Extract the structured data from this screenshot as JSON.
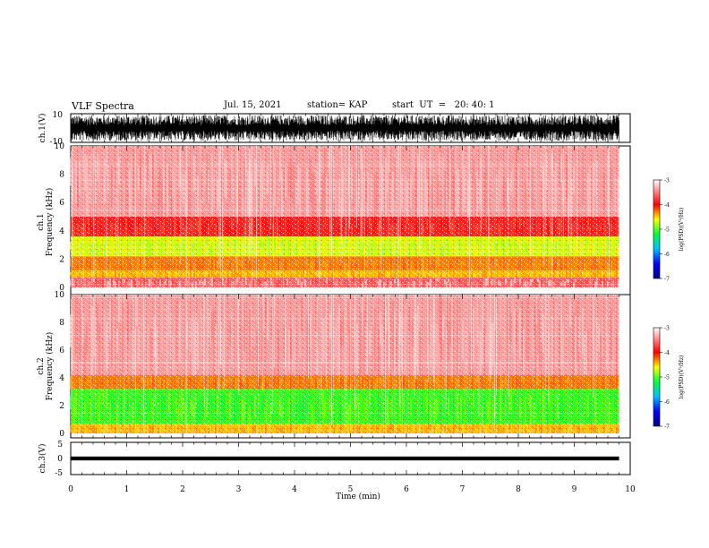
{
  "header": {
    "title": "VLF Spectra",
    "date": "Jul. 15, 2021",
    "station": "station= KAP",
    "start": "start  UT  =   20: 40: 1"
  },
  "chart_data": [
    {
      "type": "line",
      "name": "ch1-waveform",
      "ylabel": "ch.1(V)",
      "ylim": [
        -10,
        10
      ],
      "yticks": [
        "10",
        "-10"
      ],
      "xlim": [
        0,
        10
      ],
      "x": [
        0,
        0.5,
        1,
        1.5,
        2,
        2.5,
        3,
        3.5,
        4,
        4.5,
        5,
        5.5,
        6,
        6.5,
        7,
        7.5,
        8,
        8.5,
        9,
        9.5,
        9.8
      ],
      "y_min": [
        -9,
        -9,
        -9,
        -9,
        -9,
        -9,
        -9,
        -9,
        -9,
        -9,
        -9,
        -9,
        -9,
        -9,
        -9,
        -9,
        -9,
        -9,
        -9,
        -9,
        -9
      ],
      "y_max": [
        9,
        9,
        9,
        9,
        9,
        9,
        9,
        9,
        9,
        9,
        9,
        9,
        9,
        9,
        9,
        9,
        9,
        9,
        9,
        9,
        9
      ]
    },
    {
      "type": "heatmap",
      "name": "ch1-spectrogram",
      "ylabel": "Frequency  (kHz)",
      "channel_label": "ch.1",
      "xlim": [
        0,
        9.8
      ],
      "ylim": [
        0,
        10
      ],
      "yticks": [
        "0",
        "2",
        "4",
        "6",
        "8",
        "10"
      ],
      "bands": [
        {
          "from": 0,
          "to": 0.7,
          "level": "red-white"
        },
        {
          "from": 0.7,
          "to": 1.2,
          "level": "orange-yellow"
        },
        {
          "from": 1.2,
          "to": 2.2,
          "level": "orange"
        },
        {
          "from": 2.2,
          "to": 3.6,
          "level": "yellow-green"
        },
        {
          "from": 3.6,
          "to": 5.0,
          "level": "red"
        },
        {
          "from": 5.0,
          "to": 10,
          "level": "light-red"
        }
      ],
      "colorbar": {
        "label": "log(PSD)(V²/Hz)",
        "range": [
          -7,
          -3
        ],
        "ticks": [
          "-3",
          "-4",
          "-5",
          "-6",
          "-7"
        ]
      }
    },
    {
      "type": "heatmap",
      "name": "ch2-spectrogram",
      "ylabel": "Frequency  (kHz)",
      "channel_label": "ch.2",
      "xlim": [
        0,
        9.8
      ],
      "ylim": [
        0,
        10
      ],
      "yticks": [
        "0",
        "2",
        "4",
        "6",
        "8",
        "10"
      ],
      "bands": [
        {
          "from": 0,
          "to": 0.7,
          "level": "orange-yellow"
        },
        {
          "from": 0.7,
          "to": 3.2,
          "level": "green"
        },
        {
          "from": 3.2,
          "to": 4.2,
          "level": "orange"
        },
        {
          "from": 4.2,
          "to": 10,
          "level": "light-red"
        }
      ],
      "colorbar": {
        "label": "log(PSD)(V²/Hz)",
        "range": [
          -7,
          -3
        ],
        "ticks": [
          "-3",
          "-4",
          "-5",
          "-6",
          "-7"
        ]
      }
    },
    {
      "type": "line",
      "name": "ch3-waveform",
      "ylabel": "ch.3(V)",
      "ylim": [
        -5,
        5
      ],
      "yticks": [
        "5",
        "0",
        "-5"
      ],
      "xlim": [
        0,
        10
      ],
      "xlabel": "Time  (min)",
      "xticks": [
        "0",
        "1",
        "2",
        "3",
        "4",
        "5",
        "6",
        "7",
        "8",
        "9",
        "10"
      ],
      "x": [
        0,
        9.8
      ],
      "y_min": [
        -0.6,
        -0.6
      ],
      "y_max": [
        0.6,
        0.6
      ]
    }
  ]
}
